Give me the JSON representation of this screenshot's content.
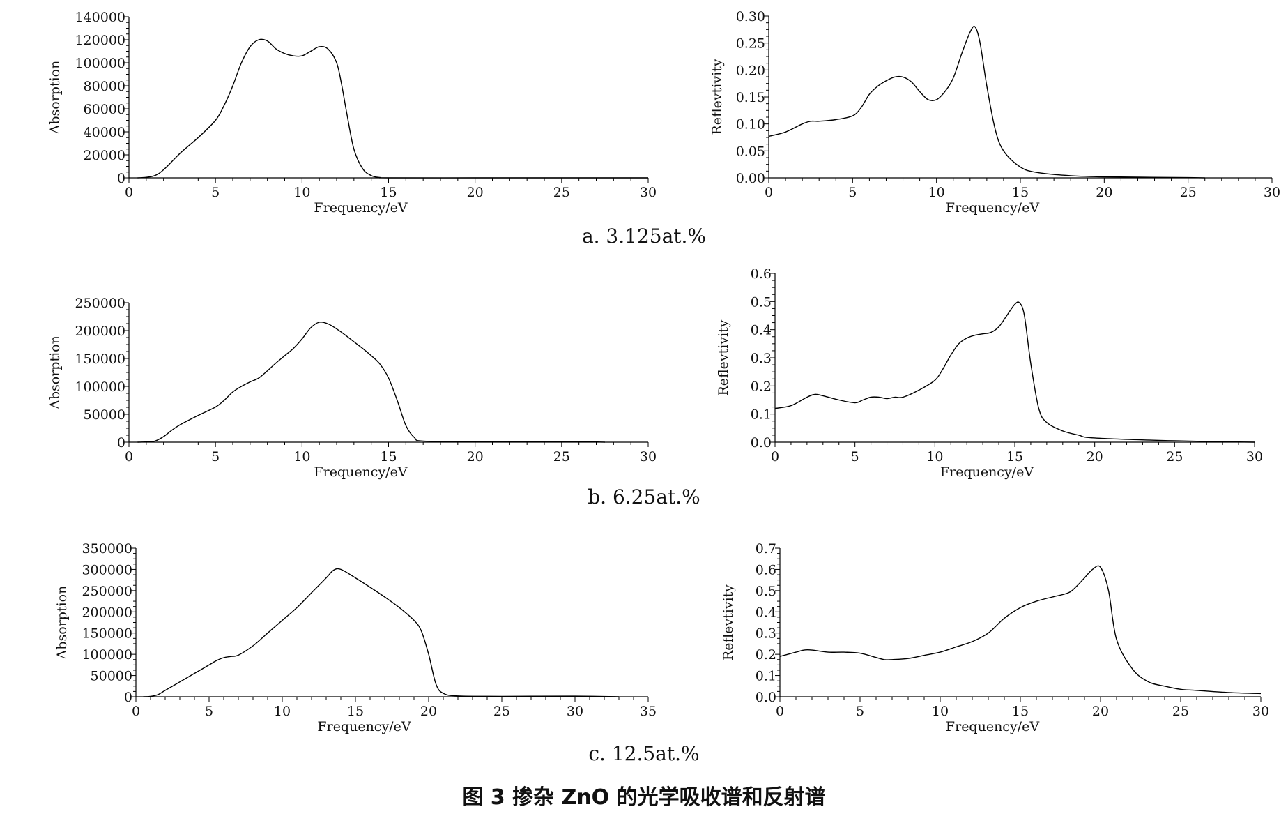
{
  "caption": "图 3 掺杂 ZnO 的光学吸收谱和反射谱",
  "panels": [
    {
      "label": "a. 3.125at.%"
    },
    {
      "label": "b. 6.25at.%"
    },
    {
      "label": "c. 12.5at.%"
    }
  ],
  "chart_data": [
    {
      "id": "a-absorption",
      "type": "line",
      "title": "",
      "xlabel": "Frequency/eV",
      "ylabel": "Absorption",
      "xlim": [
        0,
        30
      ],
      "ylim": [
        0,
        140000
      ],
      "xticks": [
        0,
        5,
        10,
        15,
        20,
        25,
        30
      ],
      "xtick_labels": [
        "0",
        "5",
        "10",
        "15",
        "20",
        "25",
        "30"
      ],
      "yticks": [
        0,
        20000,
        40000,
        60000,
        80000,
        100000,
        120000,
        140000
      ],
      "ytick_labels": [
        "0",
        "20000",
        "40000",
        "60000",
        "80000",
        "100000",
        "120000",
        "140000"
      ],
      "grid": false,
      "series": [
        {
          "x": [
            0.5,
            1,
            1.5,
            2,
            3,
            4,
            5,
            5.5,
            6,
            6.5,
            7,
            7.5,
            8,
            8.5,
            9,
            9.5,
            10,
            10.5,
            11,
            11.5,
            12,
            12.3,
            12.6,
            13,
            13.5,
            14,
            14.5,
            15,
            20,
            25,
            30
          ],
          "y": [
            0,
            500,
            2000,
            7000,
            22000,
            35000,
            50000,
            63000,
            80000,
            100000,
            114000,
            120000,
            119000,
            112000,
            108000,
            106000,
            106000,
            110000,
            114000,
            112000,
            100000,
            80000,
            55000,
            25000,
            8000,
            2000,
            300,
            0,
            0,
            0,
            0
          ]
        }
      ]
    },
    {
      "id": "a-reflectivity",
      "type": "line",
      "title": "",
      "xlabel": "Frequency/eV",
      "ylabel": "Reflevtivity",
      "xlim": [
        0,
        30
      ],
      "ylim": [
        0,
        0.3
      ],
      "xticks": [
        0,
        5,
        10,
        15,
        20,
        25,
        30
      ],
      "xtick_labels": [
        "0",
        "5",
        "10",
        "15",
        "20",
        "25",
        "30"
      ],
      "yticks": [
        0,
        0.05,
        0.1,
        0.15,
        0.2,
        0.25,
        0.3
      ],
      "ytick_labels": [
        "0.00",
        "0.05",
        "0.10",
        "0.15",
        "0.20",
        "0.25",
        "0.30"
      ],
      "grid": false,
      "series": [
        {
          "x": [
            0,
            1,
            2,
            2.5,
            3,
            4,
            5,
            5.5,
            6,
            6.5,
            7,
            7.5,
            8,
            8.5,
            9,
            9.5,
            10,
            10.5,
            11,
            11.5,
            12,
            12.3,
            12.6,
            13,
            13.5,
            14,
            15,
            16,
            18,
            20,
            25,
            26
          ],
          "y": [
            0.077,
            0.085,
            0.1,
            0.105,
            0.105,
            0.108,
            0.115,
            0.13,
            0.155,
            0.17,
            0.18,
            0.187,
            0.187,
            0.178,
            0.16,
            0.145,
            0.145,
            0.16,
            0.185,
            0.23,
            0.27,
            0.28,
            0.25,
            0.17,
            0.09,
            0.05,
            0.02,
            0.01,
            0.004,
            0.002,
            0.0005,
            0
          ]
        }
      ]
    },
    {
      "id": "b-absorption",
      "type": "line",
      "title": "",
      "xlabel": "Frequency/eV",
      "ylabel": "Absorption",
      "xlim": [
        0,
        30
      ],
      "ylim": [
        0,
        250000
      ],
      "xticks": [
        0,
        5,
        10,
        15,
        20,
        25,
        30
      ],
      "xtick_labels": [
        "0",
        "5",
        "10",
        "15",
        "20",
        "25",
        "30"
      ],
      "yticks": [
        0,
        50000,
        100000,
        150000,
        200000,
        250000
      ],
      "ytick_labels": [
        "0",
        "50000",
        "100000",
        "150000",
        "200000",
        "250000"
      ],
      "grid": false,
      "series": [
        {
          "x": [
            0.5,
            1,
            1.5,
            2,
            2.5,
            3,
            4,
            5,
            5.5,
            6,
            6.5,
            7,
            7.5,
            8,
            8.5,
            9,
            9.5,
            10,
            10.5,
            11,
            11.5,
            12,
            12.5,
            13,
            13.5,
            14,
            14.5,
            15,
            15.5,
            16,
            16.5,
            17,
            20,
            25,
            27.5
          ],
          "y": [
            0,
            500,
            2000,
            10000,
            22000,
            32000,
            48000,
            63000,
            75000,
            90000,
            100000,
            108000,
            115000,
            128000,
            142000,
            155000,
            168000,
            185000,
            205000,
            215000,
            212000,
            203000,
            192000,
            180000,
            168000,
            155000,
            140000,
            115000,
            75000,
            30000,
            8000,
            2000,
            1000,
            1500,
            0
          ]
        }
      ]
    },
    {
      "id": "b-reflectivity",
      "type": "line",
      "title": "",
      "xlabel": "Frequency/eV",
      "ylabel": "Reflevtivity",
      "xlim": [
        0,
        30
      ],
      "ylim": [
        0,
        0.6
      ],
      "xticks": [
        0,
        5,
        10,
        15,
        20,
        25,
        30
      ],
      "xtick_labels": [
        "0",
        "5",
        "10",
        "15",
        "20",
        "25",
        "30"
      ],
      "yticks": [
        0,
        0.1,
        0.2,
        0.3,
        0.4,
        0.5,
        0.6
      ],
      "ytick_labels": [
        "0.0",
        "0.1",
        "0.2",
        "0.3",
        "0.4",
        "0.5",
        "0.6"
      ],
      "grid": false,
      "series": [
        {
          "x": [
            0,
            1,
            2,
            2.5,
            3,
            4,
            5,
            5.5,
            6,
            6.5,
            7,
            7.5,
            8,
            9,
            10,
            10.5,
            11,
            11.5,
            12,
            12.5,
            13,
            13.5,
            14,
            14.5,
            15,
            15.3,
            15.6,
            16,
            16.5,
            17,
            18,
            19,
            20,
            25,
            30
          ],
          "y": [
            0.12,
            0.13,
            0.16,
            0.17,
            0.165,
            0.15,
            0.14,
            0.15,
            0.16,
            0.16,
            0.155,
            0.16,
            0.16,
            0.185,
            0.22,
            0.26,
            0.31,
            0.35,
            0.37,
            0.38,
            0.385,
            0.39,
            0.41,
            0.45,
            0.49,
            0.495,
            0.45,
            0.28,
            0.12,
            0.07,
            0.04,
            0.025,
            0.015,
            0.005,
            0
          ]
        }
      ]
    },
    {
      "id": "c-absorption",
      "type": "line",
      "title": "",
      "xlabel": "Frequency/eV",
      "ylabel": "Absorption",
      "xlim": [
        0,
        35
      ],
      "ylim": [
        0,
        350000
      ],
      "xticks": [
        0,
        5,
        10,
        15,
        20,
        25,
        30,
        35
      ],
      "xtick_labels": [
        "0",
        "5",
        "10",
        "15",
        "20",
        "25",
        "30",
        "35"
      ],
      "yticks": [
        0,
        50000,
        100000,
        150000,
        200000,
        250000,
        300000,
        350000
      ],
      "ytick_labels": [
        "0",
        "50000",
        "100000",
        "150000",
        "200000",
        "250000",
        "300000",
        "350000"
      ],
      "grid": false,
      "series": [
        {
          "x": [
            0.5,
            1,
            1.5,
            2,
            3,
            4,
            5,
            5.5,
            6,
            6.5,
            7,
            8,
            9,
            10,
            11,
            12,
            13,
            13.5,
            14,
            15,
            16,
            17,
            18,
            19,
            19.5,
            20,
            20.5,
            21,
            22,
            25,
            30,
            33
          ],
          "y": [
            0,
            1000,
            5000,
            15000,
            35000,
            55000,
            75000,
            85000,
            92000,
            95000,
            98000,
            120000,
            150000,
            180000,
            210000,
            245000,
            280000,
            298000,
            300000,
            280000,
            258000,
            235000,
            210000,
            180000,
            155000,
            100000,
            30000,
            8000,
            2000,
            1000,
            1500,
            0
          ]
        }
      ]
    },
    {
      "id": "c-reflectivity",
      "type": "line",
      "title": "",
      "xlabel": "Frequency/eV",
      "ylabel": "Reflevtivity",
      "xlim": [
        0,
        30
      ],
      "ylim": [
        0,
        0.7
      ],
      "xticks": [
        0,
        5,
        10,
        15,
        20,
        25,
        30
      ],
      "xtick_labels": [
        "0",
        "5",
        "10",
        "15",
        "20",
        "25",
        "30"
      ],
      "yticks": [
        0,
        0.1,
        0.2,
        0.3,
        0.4,
        0.5,
        0.6,
        0.7
      ],
      "ytick_labels": [
        "0.0",
        "0.1",
        "0.2",
        "0.3",
        "0.4",
        "0.5",
        "0.6",
        "0.7"
      ],
      "grid": false,
      "series": [
        {
          "x": [
            0,
            1,
            1.5,
            2,
            3,
            4,
            5,
            6,
            6.5,
            7,
            8,
            9,
            10,
            11,
            12,
            13,
            14,
            15,
            16,
            17,
            18,
            18.5,
            19,
            19.5,
            20,
            20.5,
            21,
            22,
            23,
            24,
            25,
            26,
            28,
            30
          ],
          "y": [
            0.19,
            0.21,
            0.22,
            0.22,
            0.21,
            0.21,
            0.205,
            0.185,
            0.175,
            0.175,
            0.18,
            0.195,
            0.21,
            0.235,
            0.26,
            0.3,
            0.37,
            0.42,
            0.45,
            0.47,
            0.49,
            0.52,
            0.56,
            0.6,
            0.61,
            0.5,
            0.27,
            0.13,
            0.07,
            0.05,
            0.035,
            0.03,
            0.02,
            0.015
          ]
        }
      ]
    }
  ]
}
